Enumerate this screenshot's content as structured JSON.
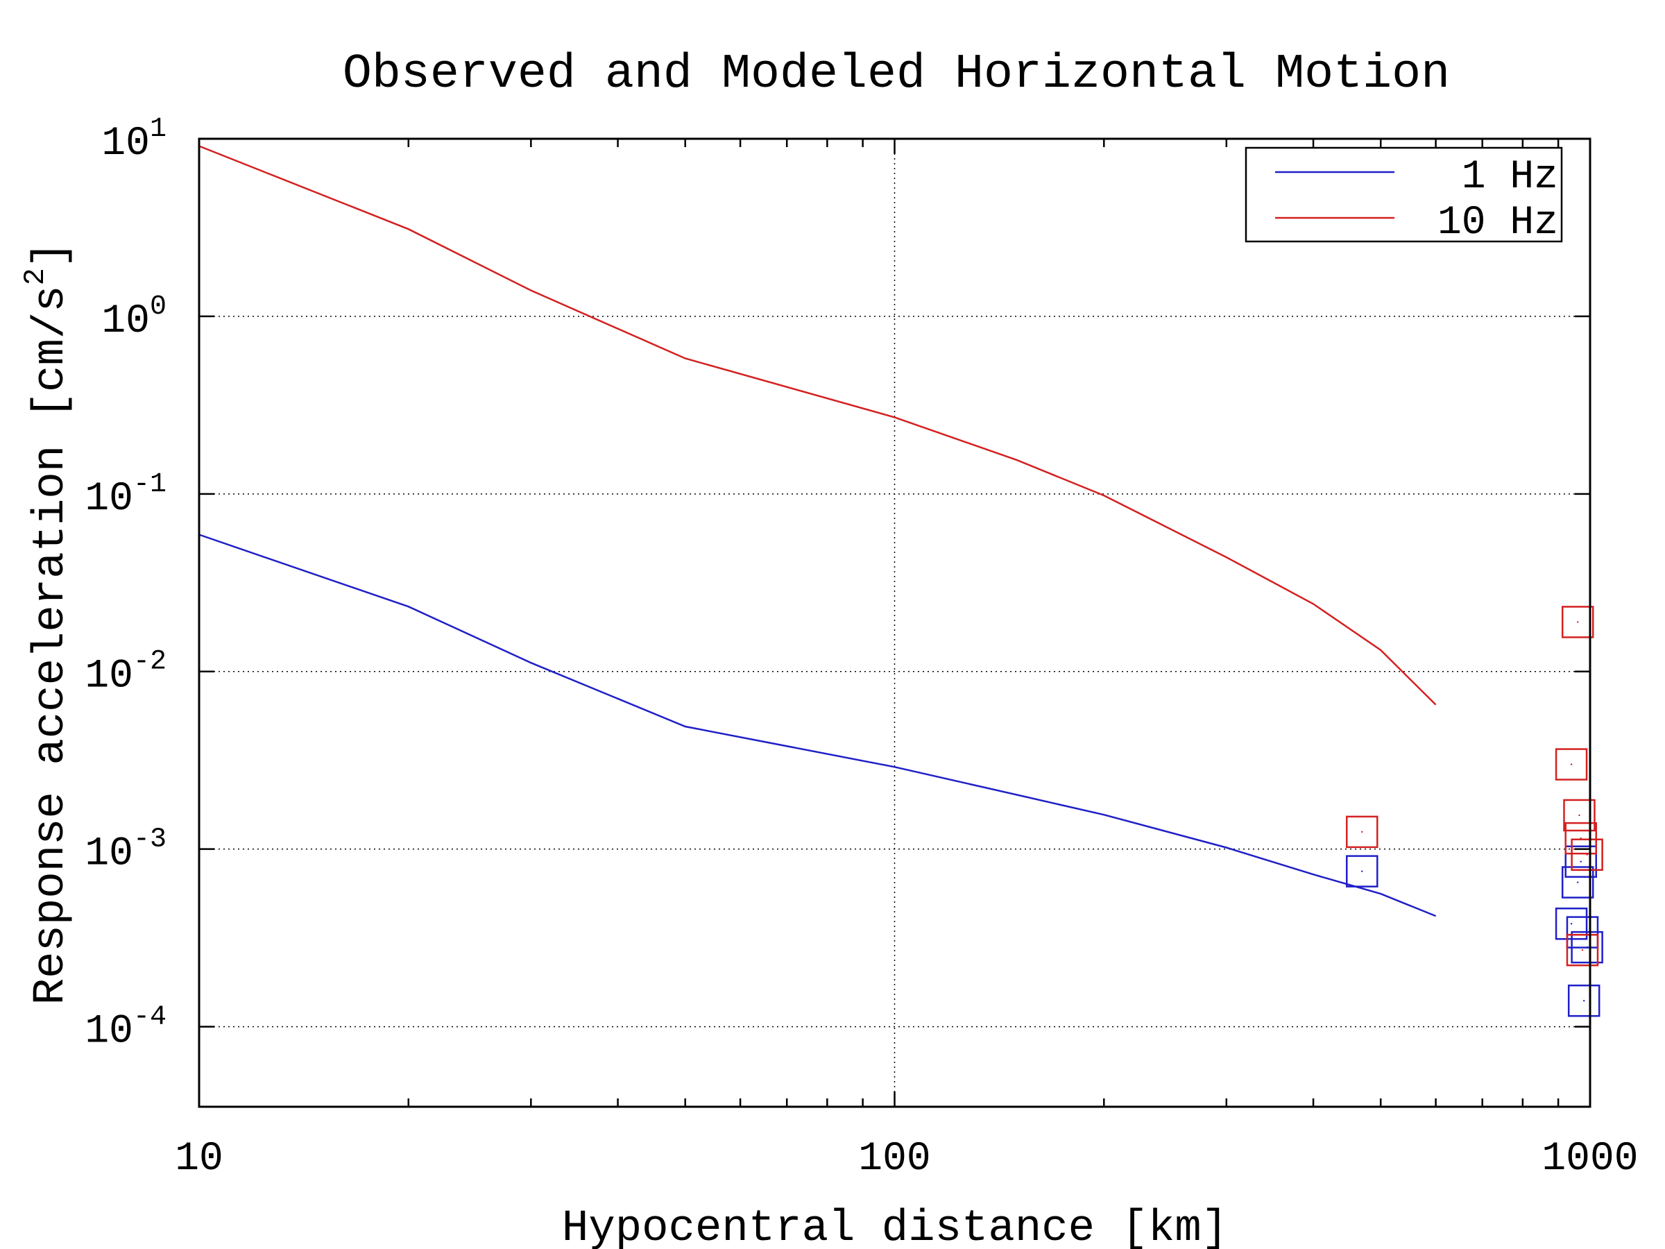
{
  "chart_data": {
    "type": "line",
    "title": "Observed and Modeled Horizontal Motion",
    "xlabel": "Hypocentral distance [km]",
    "ylabel": "Response acceleration [cm/s",
    "ylabel_sup": "2",
    "ylabel_tail": "]",
    "xscale": "log",
    "yscale": "log",
    "xlim": [
      10,
      1000
    ],
    "ylim": [
      3.54e-05,
      10
    ],
    "grid": true,
    "legend_placement": "top-right",
    "x_ticks": [
      {
        "value": 10,
        "label": "10"
      },
      {
        "value": 100,
        "label": "100"
      },
      {
        "value": 1000,
        "label": "1000"
      }
    ],
    "y_ticks": [
      {
        "value": 10,
        "base": "10",
        "exp": "1"
      },
      {
        "value": 1,
        "base": "10",
        "exp": "0"
      },
      {
        "value": 0.1,
        "base": "10",
        "exp": "-1"
      },
      {
        "value": 0.01,
        "base": "10",
        "exp": "-2"
      },
      {
        "value": 0.001,
        "base": "10",
        "exp": "-3"
      },
      {
        "value": 0.0001,
        "base": "10",
        "exp": "-4"
      }
    ],
    "series": [
      {
        "name": "1 Hz",
        "color": "#1f1fc8",
        "line": {
          "x": [
            10,
            20,
            30,
            50,
            100,
            150,
            200,
            300,
            400,
            500,
            600
          ],
          "y": [
            0.059,
            0.0232,
            0.0112,
            0.0049,
            0.0029,
            0.00202,
            0.00156,
            0.00102,
            0.00072,
            0.00056,
            0.00042
          ]
        },
        "observed": {
          "x": [
            470,
            940,
            960,
            970,
            975,
            980,
            990
          ],
          "y": [
            0.00075,
            0.00038,
            0.00065,
            0.00085,
            0.00034,
            0.00014,
            0.00028
          ]
        }
      },
      {
        "name": "10 Hz",
        "color": "#d42020",
        "line": {
          "x": [
            10,
            20,
            30,
            50,
            100,
            150,
            200,
            300,
            400,
            500,
            600
          ],
          "y": [
            9.1,
            3.1,
            1.4,
            0.58,
            0.27,
            0.155,
            0.098,
            0.044,
            0.024,
            0.0132,
            0.0065
          ]
        },
        "observed": {
          "x": [
            470,
            940,
            960,
            965,
            970,
            975,
            990
          ],
          "y": [
            0.00125,
            0.003,
            0.019,
            0.00155,
            0.00115,
            0.00027,
            0.00093
          ]
        }
      }
    ]
  }
}
